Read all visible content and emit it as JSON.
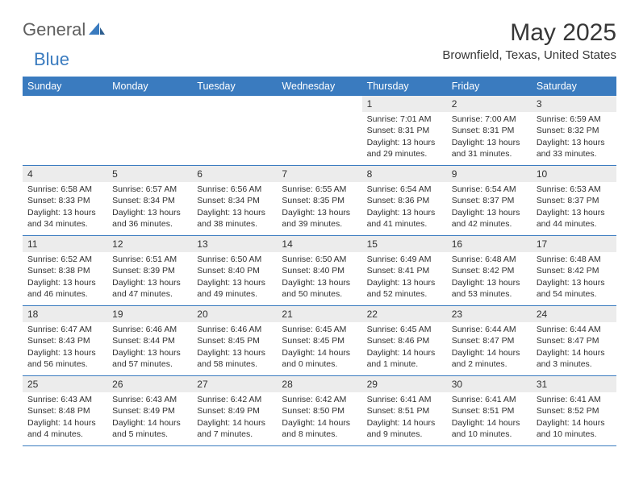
{
  "brand": {
    "text1": "General",
    "text2": "Blue"
  },
  "title": "May 2025",
  "location": "Brownfield, Texas, United States",
  "colors": {
    "header_bg": "#3a7bbf",
    "header_text": "#ffffff",
    "daynum_bg": "#ececec",
    "rule": "#3a7bbf",
    "page_bg": "#ffffff",
    "body_text": "#303030",
    "title_text": "#373737",
    "logo_gray": "#5f5f5f",
    "logo_blue": "#3a7bbf"
  },
  "dayNames": [
    "Sunday",
    "Monday",
    "Tuesday",
    "Wednesday",
    "Thursday",
    "Friday",
    "Saturday"
  ],
  "weeks": [
    [
      null,
      null,
      null,
      null,
      {
        "n": "1",
        "sr": "Sunrise: 7:01 AM",
        "ss": "Sunset: 8:31 PM",
        "dl1": "Daylight: 13 hours",
        "dl2": "and 29 minutes."
      },
      {
        "n": "2",
        "sr": "Sunrise: 7:00 AM",
        "ss": "Sunset: 8:31 PM",
        "dl1": "Daylight: 13 hours",
        "dl2": "and 31 minutes."
      },
      {
        "n": "3",
        "sr": "Sunrise: 6:59 AM",
        "ss": "Sunset: 8:32 PM",
        "dl1": "Daylight: 13 hours",
        "dl2": "and 33 minutes."
      }
    ],
    [
      {
        "n": "4",
        "sr": "Sunrise: 6:58 AM",
        "ss": "Sunset: 8:33 PM",
        "dl1": "Daylight: 13 hours",
        "dl2": "and 34 minutes."
      },
      {
        "n": "5",
        "sr": "Sunrise: 6:57 AM",
        "ss": "Sunset: 8:34 PM",
        "dl1": "Daylight: 13 hours",
        "dl2": "and 36 minutes."
      },
      {
        "n": "6",
        "sr": "Sunrise: 6:56 AM",
        "ss": "Sunset: 8:34 PM",
        "dl1": "Daylight: 13 hours",
        "dl2": "and 38 minutes."
      },
      {
        "n": "7",
        "sr": "Sunrise: 6:55 AM",
        "ss": "Sunset: 8:35 PM",
        "dl1": "Daylight: 13 hours",
        "dl2": "and 39 minutes."
      },
      {
        "n": "8",
        "sr": "Sunrise: 6:54 AM",
        "ss": "Sunset: 8:36 PM",
        "dl1": "Daylight: 13 hours",
        "dl2": "and 41 minutes."
      },
      {
        "n": "9",
        "sr": "Sunrise: 6:54 AM",
        "ss": "Sunset: 8:37 PM",
        "dl1": "Daylight: 13 hours",
        "dl2": "and 42 minutes."
      },
      {
        "n": "10",
        "sr": "Sunrise: 6:53 AM",
        "ss": "Sunset: 8:37 PM",
        "dl1": "Daylight: 13 hours",
        "dl2": "and 44 minutes."
      }
    ],
    [
      {
        "n": "11",
        "sr": "Sunrise: 6:52 AM",
        "ss": "Sunset: 8:38 PM",
        "dl1": "Daylight: 13 hours",
        "dl2": "and 46 minutes."
      },
      {
        "n": "12",
        "sr": "Sunrise: 6:51 AM",
        "ss": "Sunset: 8:39 PM",
        "dl1": "Daylight: 13 hours",
        "dl2": "and 47 minutes."
      },
      {
        "n": "13",
        "sr": "Sunrise: 6:50 AM",
        "ss": "Sunset: 8:40 PM",
        "dl1": "Daylight: 13 hours",
        "dl2": "and 49 minutes."
      },
      {
        "n": "14",
        "sr": "Sunrise: 6:50 AM",
        "ss": "Sunset: 8:40 PM",
        "dl1": "Daylight: 13 hours",
        "dl2": "and 50 minutes."
      },
      {
        "n": "15",
        "sr": "Sunrise: 6:49 AM",
        "ss": "Sunset: 8:41 PM",
        "dl1": "Daylight: 13 hours",
        "dl2": "and 52 minutes."
      },
      {
        "n": "16",
        "sr": "Sunrise: 6:48 AM",
        "ss": "Sunset: 8:42 PM",
        "dl1": "Daylight: 13 hours",
        "dl2": "and 53 minutes."
      },
      {
        "n": "17",
        "sr": "Sunrise: 6:48 AM",
        "ss": "Sunset: 8:42 PM",
        "dl1": "Daylight: 13 hours",
        "dl2": "and 54 minutes."
      }
    ],
    [
      {
        "n": "18",
        "sr": "Sunrise: 6:47 AM",
        "ss": "Sunset: 8:43 PM",
        "dl1": "Daylight: 13 hours",
        "dl2": "and 56 minutes."
      },
      {
        "n": "19",
        "sr": "Sunrise: 6:46 AM",
        "ss": "Sunset: 8:44 PM",
        "dl1": "Daylight: 13 hours",
        "dl2": "and 57 minutes."
      },
      {
        "n": "20",
        "sr": "Sunrise: 6:46 AM",
        "ss": "Sunset: 8:45 PM",
        "dl1": "Daylight: 13 hours",
        "dl2": "and 58 minutes."
      },
      {
        "n": "21",
        "sr": "Sunrise: 6:45 AM",
        "ss": "Sunset: 8:45 PM",
        "dl1": "Daylight: 14 hours",
        "dl2": "and 0 minutes."
      },
      {
        "n": "22",
        "sr": "Sunrise: 6:45 AM",
        "ss": "Sunset: 8:46 PM",
        "dl1": "Daylight: 14 hours",
        "dl2": "and 1 minute."
      },
      {
        "n": "23",
        "sr": "Sunrise: 6:44 AM",
        "ss": "Sunset: 8:47 PM",
        "dl1": "Daylight: 14 hours",
        "dl2": "and 2 minutes."
      },
      {
        "n": "24",
        "sr": "Sunrise: 6:44 AM",
        "ss": "Sunset: 8:47 PM",
        "dl1": "Daylight: 14 hours",
        "dl2": "and 3 minutes."
      }
    ],
    [
      {
        "n": "25",
        "sr": "Sunrise: 6:43 AM",
        "ss": "Sunset: 8:48 PM",
        "dl1": "Daylight: 14 hours",
        "dl2": "and 4 minutes."
      },
      {
        "n": "26",
        "sr": "Sunrise: 6:43 AM",
        "ss": "Sunset: 8:49 PM",
        "dl1": "Daylight: 14 hours",
        "dl2": "and 5 minutes."
      },
      {
        "n": "27",
        "sr": "Sunrise: 6:42 AM",
        "ss": "Sunset: 8:49 PM",
        "dl1": "Daylight: 14 hours",
        "dl2": "and 7 minutes."
      },
      {
        "n": "28",
        "sr": "Sunrise: 6:42 AM",
        "ss": "Sunset: 8:50 PM",
        "dl1": "Daylight: 14 hours",
        "dl2": "and 8 minutes."
      },
      {
        "n": "29",
        "sr": "Sunrise: 6:41 AM",
        "ss": "Sunset: 8:51 PM",
        "dl1": "Daylight: 14 hours",
        "dl2": "and 9 minutes."
      },
      {
        "n": "30",
        "sr": "Sunrise: 6:41 AM",
        "ss": "Sunset: 8:51 PM",
        "dl1": "Daylight: 14 hours",
        "dl2": "and 10 minutes."
      },
      {
        "n": "31",
        "sr": "Sunrise: 6:41 AM",
        "ss": "Sunset: 8:52 PM",
        "dl1": "Daylight: 14 hours",
        "dl2": "and 10 minutes."
      }
    ]
  ]
}
